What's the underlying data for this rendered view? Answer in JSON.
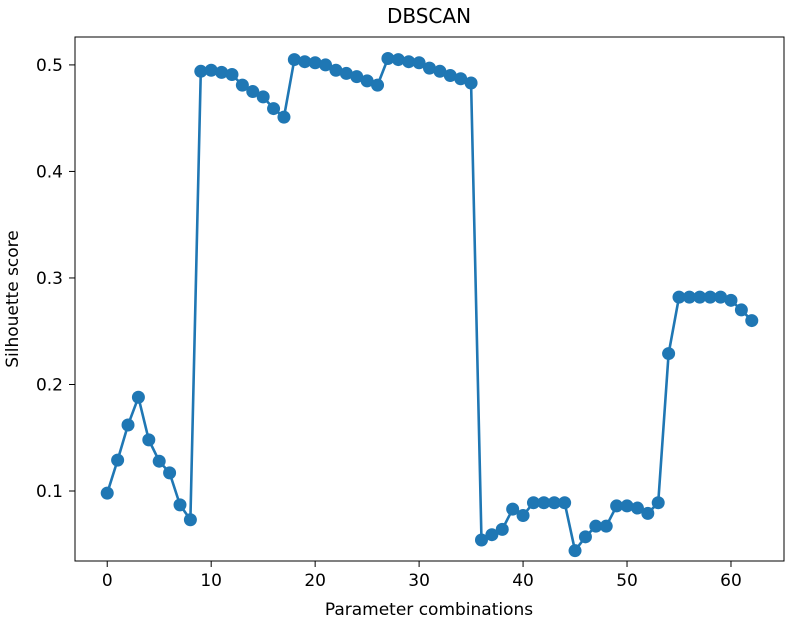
{
  "chart_data": {
    "type": "line",
    "title": "DBSCAN",
    "xlabel": "Parameter combinations",
    "ylabel": "Silhouette score",
    "xlim": [
      -3.1,
      65.1
    ],
    "ylim": [
      0.0343,
      0.5262
    ],
    "xticks": [
      0,
      10,
      20,
      30,
      40,
      50,
      60
    ],
    "xtick_labels": [
      "0",
      "10",
      "20",
      "30",
      "40",
      "50",
      "60"
    ],
    "yticks": [
      0.1,
      0.2,
      0.3,
      0.4,
      0.5
    ],
    "ytick_labels": [
      "0.1",
      "0.2",
      "0.3",
      "0.4",
      "0.5"
    ],
    "grid": false,
    "color": "#1f77b4",
    "marker": "circle",
    "series": [
      {
        "x": [
          0,
          1,
          2,
          3,
          4,
          5,
          6,
          7,
          8,
          9,
          10,
          11,
          12,
          13,
          14,
          15,
          16,
          17,
          18,
          19,
          20,
          21,
          22,
          23,
          24,
          25,
          26,
          27,
          28,
          29,
          30,
          31,
          32,
          33,
          34,
          35,
          36,
          37,
          38,
          39,
          40,
          41,
          42,
          43,
          44,
          45,
          46,
          47,
          48,
          49,
          50,
          51,
          52,
          53,
          54,
          55,
          56,
          57,
          58,
          59,
          60,
          61,
          62
        ],
        "y": [
          0.098,
          0.129,
          0.162,
          0.188,
          0.148,
          0.128,
          0.117,
          0.087,
          0.073,
          0.494,
          0.495,
          0.493,
          0.491,
          0.481,
          0.475,
          0.47,
          0.459,
          0.451,
          0.505,
          0.503,
          0.502,
          0.5,
          0.495,
          0.492,
          0.489,
          0.485,
          0.481,
          0.506,
          0.505,
          0.503,
          0.502,
          0.497,
          0.494,
          0.49,
          0.487,
          0.483,
          0.054,
          0.059,
          0.064,
          0.083,
          0.077,
          0.089,
          0.089,
          0.089,
          0.089,
          0.044,
          0.057,
          0.067,
          0.067,
          0.086,
          0.086,
          0.084,
          0.079,
          0.089,
          0.229,
          0.282,
          0.282,
          0.282,
          0.282,
          0.282,
          0.279,
          0.27,
          0.26
        ]
      }
    ]
  }
}
